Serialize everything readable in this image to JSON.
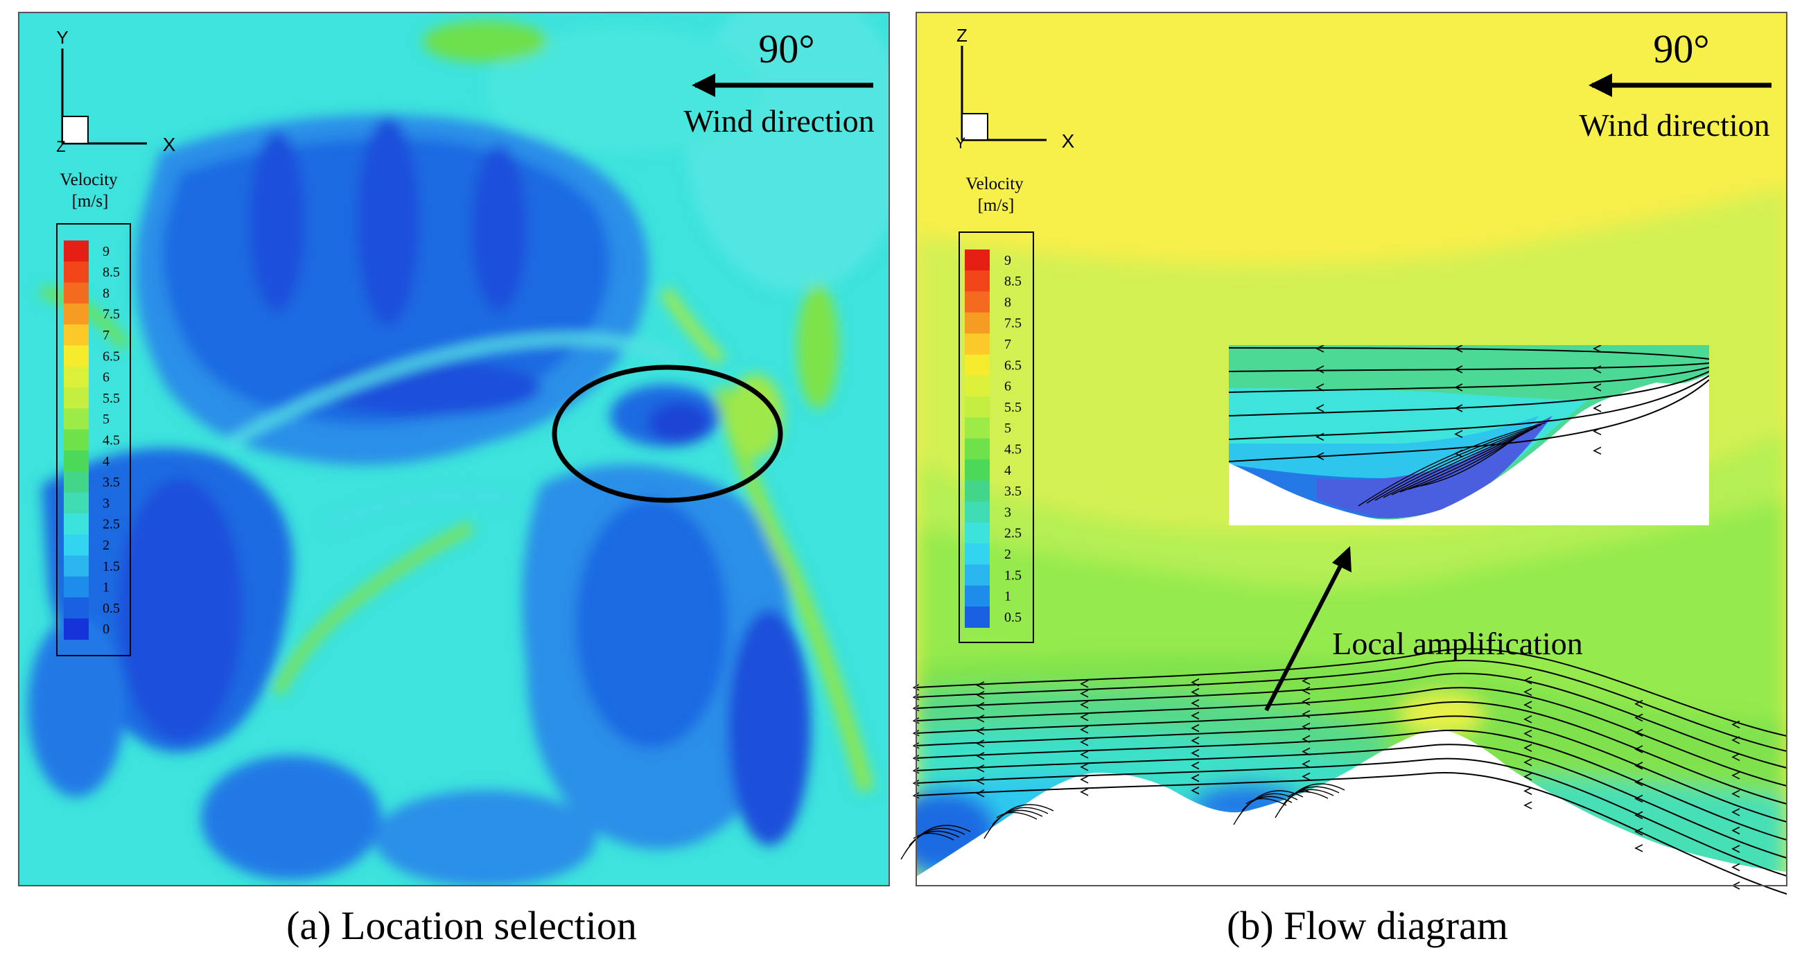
{
  "panel_a": {
    "caption": "(a) Location selection",
    "angle": "90°",
    "wind_label": "Wind direction",
    "axes": {
      "y": "Y",
      "x": "X",
      "z": "Z"
    },
    "legend_title": "Velocity",
    "legend_unit": "[m/s]",
    "legend_ticks": [
      "9",
      "8.5",
      "8",
      "7.5",
      "7",
      "6.5",
      "6",
      "5.5",
      "5",
      "4.5",
      "4",
      "3.5",
      "3",
      "2.5",
      "2",
      "1.5",
      "1",
      "0.5",
      "0"
    ]
  },
  "panel_b": {
    "caption": "(b) Flow diagram",
    "angle": "90°",
    "wind_label": "Wind direction",
    "axes": {
      "z": "Z",
      "x": "X",
      "y": "Y"
    },
    "legend_title": "Velocity",
    "legend_unit": "[m/s]",
    "legend_ticks": [
      "9",
      "8.5",
      "8",
      "7.5",
      "7",
      "6.5",
      "6",
      "5.5",
      "5",
      "4.5",
      "4",
      "3.5",
      "3",
      "2.5",
      "2",
      "1.5",
      "1",
      "0.5"
    ],
    "annotation": "Local amplification"
  },
  "colors": {
    "colormap": [
      "#e51f13",
      "#f2461a",
      "#f46b1f",
      "#f79c22",
      "#fbc92a",
      "#f6ec2d",
      "#ddf039",
      "#c4ef40",
      "#9deb46",
      "#6fe14b",
      "#4cd95a",
      "#42d788",
      "#3fdcb4",
      "#3be3dc",
      "#32d4ef",
      "#2cb6ef",
      "#1e8cea",
      "#1961e0",
      "#1533d8"
    ],
    "frame": "#555555",
    "ink": "#000000"
  }
}
